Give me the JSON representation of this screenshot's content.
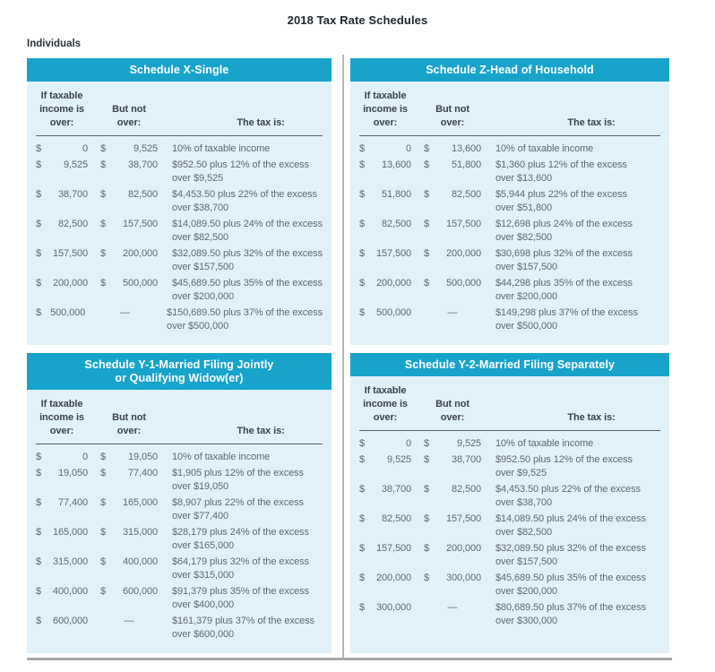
{
  "page": {
    "title": "2018 Tax Rate Schedules",
    "section_label": "Individuals"
  },
  "column_headers": {
    "col1": "If taxable income is over:",
    "col2": "But not over:",
    "col3": "The tax is:"
  },
  "accent_colors": {
    "header_bar": "#18a3cb",
    "panel_background": "#e1f1f9"
  },
  "schedules": [
    {
      "title_lines": [
        "Schedule X-Single"
      ],
      "rows": [
        {
          "c1": [
            "$",
            "0"
          ],
          "c2": [
            "$",
            "9,525"
          ],
          "tax_lines": [
            "10% of taxable income"
          ]
        },
        {
          "c1": [
            "$",
            "9,525"
          ],
          "c2": [
            "$",
            "38,700"
          ],
          "tax_lines": [
            "$952.50 plus 12% of the excess",
            "over $9,525"
          ]
        },
        {
          "c1": [
            "$",
            "38,700"
          ],
          "c2": [
            "$",
            "82,500"
          ],
          "tax_lines": [
            "$4,453.50 plus 22% of the excess",
            "over $38,700"
          ]
        },
        {
          "c1": [
            "$",
            "82,500"
          ],
          "c2": [
            "$",
            "157,500"
          ],
          "tax_lines": [
            "$14,089.50 plus 24% of the excess",
            "over $82,500"
          ]
        },
        {
          "c1": [
            "$",
            "157,500"
          ],
          "c2": [
            "$",
            "200,000"
          ],
          "tax_lines": [
            "$32,089.50 plus 32% of the excess",
            "over $157,500"
          ]
        },
        {
          "c1": [
            "$",
            "200,000"
          ],
          "c2": [
            "$",
            "500,000"
          ],
          "tax_lines": [
            "$45,689.50 plus 35% of the excess",
            "over $200,000"
          ]
        },
        {
          "c1": [
            "$",
            "500,000"
          ],
          "c2": [
            "",
            "—"
          ],
          "tax_lines": [
            "$150,689.50 plus 37% of the excess",
            "over $500,000"
          ]
        }
      ]
    },
    {
      "title_lines": [
        "Schedule Z-Head of Household"
      ],
      "rows": [
        {
          "c1": [
            "$",
            "0"
          ],
          "c2": [
            "$",
            "13,600"
          ],
          "tax_lines": [
            "10% of taxable income"
          ]
        },
        {
          "c1": [
            "$",
            "13,600"
          ],
          "c2": [
            "$",
            "51,800"
          ],
          "tax_lines": [
            "$1,360 plus 12% of the excess",
            "over $13,600"
          ]
        },
        {
          "c1": [
            "$",
            "51,800"
          ],
          "c2": [
            "$",
            "82,500"
          ],
          "tax_lines": [
            "$5,944 plus 22% of the excess",
            "over $51,800"
          ]
        },
        {
          "c1": [
            "$",
            "82,500"
          ],
          "c2": [
            "$",
            "157,500"
          ],
          "tax_lines": [
            "$12,698 plus 24% of the excess",
            "over $82,500"
          ]
        },
        {
          "c1": [
            "$",
            "157,500"
          ],
          "c2": [
            "$",
            "200,000"
          ],
          "tax_lines": [
            "$30,698 plus 32% of the excess",
            "over $157,500"
          ]
        },
        {
          "c1": [
            "$",
            "200,000"
          ],
          "c2": [
            "$",
            "500,000"
          ],
          "tax_lines": [
            "$44,298 plus 35% of the excess",
            "over $200,000"
          ]
        },
        {
          "c1": [
            "$",
            "500,000"
          ],
          "c2": [
            "",
            "—"
          ],
          "tax_lines": [
            "$149,298 plus 37% of the excess",
            "over $500,000"
          ]
        }
      ]
    },
    {
      "title_lines": [
        "Schedule Y-1-Married Filing Jointly",
        "or Qualifying Widow(er)"
      ],
      "rows": [
        {
          "c1": [
            "$",
            "0"
          ],
          "c2": [
            "$",
            "19,050"
          ],
          "tax_lines": [
            "10% of taxable income"
          ]
        },
        {
          "c1": [
            "$",
            "19,050"
          ],
          "c2": [
            "$",
            "77,400"
          ],
          "tax_lines": [
            "$1,905 plus 12% of the excess",
            "over $19,050"
          ]
        },
        {
          "c1": [
            "$",
            "77,400"
          ],
          "c2": [
            "$",
            "165,000"
          ],
          "tax_lines": [
            "$8,907 plus 22% of the excess",
            "over $77,400"
          ]
        },
        {
          "c1": [
            "$",
            "165,000"
          ],
          "c2": [
            "$",
            "315,000"
          ],
          "tax_lines": [
            "$28,179 plus 24% of the excess",
            "over $165,000"
          ]
        },
        {
          "c1": [
            "$",
            "315,000"
          ],
          "c2": [
            "$",
            "400,000"
          ],
          "tax_lines": [
            "$64,179 plus 32% of the excess",
            "over $315,000"
          ]
        },
        {
          "c1": [
            "$",
            "400,000"
          ],
          "c2": [
            "$",
            "600,000"
          ],
          "tax_lines": [
            "$91,379 plus 35% of the excess",
            "over $400,000"
          ]
        },
        {
          "c1": [
            "$",
            "600,000"
          ],
          "c2": [
            "",
            "—"
          ],
          "tax_lines": [
            "$161,379 plus 37% of the excess",
            "over $600,000"
          ]
        }
      ]
    },
    {
      "title_lines": [
        "Schedule Y-2-Married Filing Separately"
      ],
      "rows": [
        {
          "c1": [
            "$",
            "0"
          ],
          "c2": [
            "$",
            "9,525"
          ],
          "tax_lines": [
            "10% of taxable income"
          ]
        },
        {
          "c1": [
            "$",
            "9,525"
          ],
          "c2": [
            "$",
            "38,700"
          ],
          "tax_lines": [
            "$952.50 plus 12% of the excess",
            "over $9,525"
          ]
        },
        {
          "c1": [
            "$",
            "38,700"
          ],
          "c2": [
            "$",
            "82,500"
          ],
          "tax_lines": [
            "$4,453.50 plus 22% of the excess",
            "over $38,700"
          ]
        },
        {
          "c1": [
            "$",
            "82,500"
          ],
          "c2": [
            "$",
            "157,500"
          ],
          "tax_lines": [
            "$14,089.50 plus 24% of the excess",
            "over $82,500"
          ]
        },
        {
          "c1": [
            "$",
            "157,500"
          ],
          "c2": [
            "$",
            "200,000"
          ],
          "tax_lines": [
            "$32,089.50 plus 32% of the excess",
            "over $157,500"
          ]
        },
        {
          "c1": [
            "$",
            "200,000"
          ],
          "c2": [
            "$",
            "300,000"
          ],
          "tax_lines": [
            "$45,689.50 plus 35% of the excess",
            "over $200,000"
          ]
        },
        {
          "c1": [
            "$",
            "300,000"
          ],
          "c2": [
            "",
            "—"
          ],
          "tax_lines": [
            "$80,689.50 plus 37% of the excess",
            "over $300,000"
          ]
        }
      ]
    }
  ]
}
